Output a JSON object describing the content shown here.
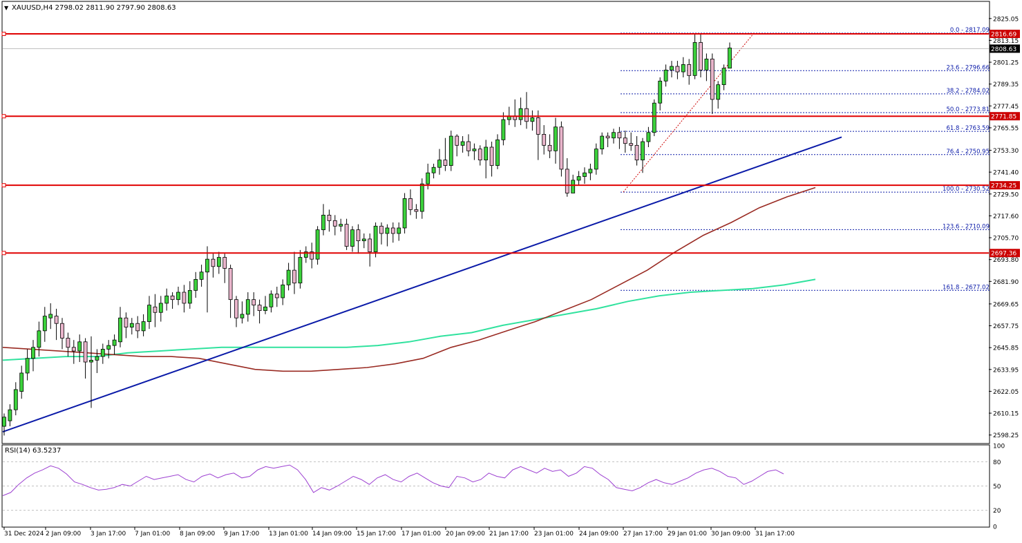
{
  "header": {
    "symbol_line": "XAUUSD,H4  2798.02 2811.90 2797.90 2808.63",
    "dropdown_glyph": "▼"
  },
  "rsi_header": "RSI(14) 63.5237",
  "colors": {
    "bull_body": "#3cd23c",
    "bear_body": "#e9b5cb",
    "wick": "#000000",
    "hline": "#e00000",
    "trendline": "#0a1aa8",
    "ma_red": "#992a22",
    "ma_green": "#30e29e",
    "fib": "#0a1aa8",
    "rsi_line": "#9c3fd1",
    "label_bg": "#cc0000",
    "price_label_bg": "#000000"
  },
  "chart_data": [
    {
      "type": "candlestick",
      "title": "XAUUSD,H4",
      "last": {
        "open": 2798.02,
        "high": 2811.9,
        "low": 2797.9,
        "close": 2808.63
      },
      "ylim": [
        2594,
        2834
      ],
      "y_ticks": [
        "2825.05",
        "2813.15",
        "2801.25",
        "2789.35",
        "2777.45",
        "2765.55",
        "2753.30",
        "2741.40",
        "2729.50",
        "2717.60",
        "2705.70",
        "2693.80",
        "2681.90",
        "2669.65",
        "2657.75",
        "2645.85",
        "2633.95",
        "2622.05",
        "2610.15",
        "2598.25"
      ],
      "x_ticks": [
        "31 Dec 2024",
        "2 Jan 09:00",
        "3 Jan 17:00",
        "7 Jan 01:00",
        "8 Jan 09:00",
        "9 Jan 17:00",
        "13 Jan 01:00",
        "14 Jan 09:00",
        "15 Jan 17:00",
        "17 Jan 01:00",
        "20 Jan 09:00",
        "21 Jan 17:00",
        "23 Jan 01:00",
        "24 Jan 09:00",
        "27 Jan 17:00",
        "29 Jan 01:00",
        "30 Jan 09:00",
        "31 Jan 17:00"
      ],
      "candles": [
        [
          2603,
          2608,
          2598,
          2610
        ],
        [
          2606,
          2612,
          2603,
          2615
        ],
        [
          2612,
          2623,
          2609,
          2627
        ],
        [
          2622,
          2632,
          2618,
          2636
        ],
        [
          2632,
          2640,
          2628,
          2645
        ],
        [
          2640,
          2646,
          2633,
          2650
        ],
        [
          2646,
          2655,
          2641,
          2660
        ],
        [
          2655,
          2663,
          2649,
          2668
        ],
        [
          2662,
          2664,
          2656,
          2670
        ],
        [
          2663,
          2659,
          2650,
          2667
        ],
        [
          2659,
          2651,
          2645,
          2662
        ],
        [
          2651,
          2646,
          2641,
          2654
        ],
        [
          2646,
          2644,
          2637,
          2650
        ],
        [
          2644,
          2649,
          2638,
          2653
        ],
        [
          2649,
          2638,
          2629,
          2651
        ],
        [
          2638,
          2639,
          2613,
          2652
        ],
        [
          2639,
          2641,
          2632,
          2645
        ],
        [
          2641,
          2645,
          2637,
          2648
        ],
        [
          2645,
          2647,
          2640,
          2650
        ],
        [
          2647,
          2650,
          2642,
          2653
        ],
        [
          2649,
          2662,
          2646,
          2668
        ],
        [
          2662,
          2657,
          2651,
          2665
        ],
        [
          2657,
          2659,
          2653,
          2662
        ],
        [
          2659,
          2655,
          2651,
          2663
        ],
        [
          2655,
          2660,
          2652,
          2664
        ],
        [
          2660,
          2669,
          2656,
          2674
        ],
        [
          2668,
          2665,
          2657,
          2675
        ],
        [
          2665,
          2670,
          2660,
          2674
        ],
        [
          2670,
          2674,
          2666,
          2678
        ],
        [
          2674,
          2672,
          2667,
          2676
        ],
        [
          2672,
          2676,
          2669,
          2679
        ],
        [
          2676,
          2670,
          2665,
          2680
        ],
        [
          2670,
          2677,
          2667,
          2682
        ],
        [
          2677,
          2683,
          2673,
          2687
        ],
        [
          2683,
          2687,
          2679,
          2691
        ],
        [
          2687,
          2694,
          2665,
          2701
        ],
        [
          2694,
          2690,
          2684,
          2697
        ],
        [
          2690,
          2695,
          2686,
          2698
        ],
        [
          2695,
          2689,
          2681,
          2697
        ],
        [
          2689,
          2672,
          2662,
          2691
        ],
        [
          2672,
          2662,
          2657,
          2674
        ],
        [
          2662,
          2664,
          2659,
          2671
        ],
        [
          2664,
          2672,
          2660,
          2676
        ],
        [
          2672,
          2669,
          2663,
          2676
        ],
        [
          2669,
          2666,
          2659,
          2672
        ],
        [
          2666,
          2668,
          2664,
          2674
        ],
        [
          2668,
          2675,
          2665,
          2677
        ],
        [
          2675,
          2673,
          2668,
          2679
        ],
        [
          2673,
          2680,
          2669,
          2683
        ],
        [
          2680,
          2688,
          2677,
          2692
        ],
        [
          2688,
          2681,
          2675,
          2698
        ],
        [
          2681,
          2695,
          2678,
          2699
        ],
        [
          2695,
          2698,
          2692,
          2701
        ],
        [
          2698,
          2694,
          2689,
          2703
        ],
        [
          2694,
          2710,
          2691,
          2712
        ],
        [
          2710,
          2718,
          2707,
          2724
        ],
        [
          2718,
          2715,
          2709,
          2721
        ],
        [
          2715,
          2712,
          2707,
          2718
        ],
        [
          2712,
          2713,
          2709,
          2716
        ],
        [
          2713,
          2701,
          2699,
          2716
        ],
        [
          2701,
          2710,
          2698,
          2712
        ],
        [
          2710,
          2704,
          2697,
          2713
        ],
        [
          2704,
          2705,
          2700,
          2708
        ],
        [
          2705,
          2698,
          2690,
          2708
        ],
        [
          2698,
          2712,
          2695,
          2714
        ],
        [
          2712,
          2708,
          2702,
          2714
        ],
        [
          2708,
          2711,
          2701,
          2713
        ],
        [
          2711,
          2708,
          2703,
          2714
        ],
        [
          2708,
          2711,
          2704,
          2714
        ],
        [
          2711,
          2727,
          2708,
          2730
        ],
        [
          2727,
          2721,
          2718,
          2732
        ],
        [
          2721,
          2720,
          2716,
          2724
        ],
        [
          2720,
          2735,
          2716,
          2738
        ],
        [
          2735,
          2741,
          2732,
          2746
        ],
        [
          2741,
          2744,
          2738,
          2746
        ],
        [
          2744,
          2748,
          2740,
          2754
        ],
        [
          2748,
          2745,
          2742,
          2760
        ],
        [
          2745,
          2761,
          2742,
          2764
        ],
        [
          2761,
          2756,
          2750,
          2762
        ],
        [
          2756,
          2758,
          2752,
          2761
        ],
        [
          2758,
          2753,
          2750,
          2762
        ],
        [
          2753,
          2754,
          2748,
          2757
        ],
        [
          2754,
          2748,
          2745,
          2756
        ],
        [
          2748,
          2755,
          2738,
          2759
        ],
        [
          2755,
          2745,
          2739,
          2758
        ],
        [
          2745,
          2759,
          2743,
          2762
        ],
        [
          2759,
          2770,
          2756,
          2774
        ],
        [
          2770,
          2772,
          2767,
          2777
        ],
        [
          2772,
          2770,
          2766,
          2781
        ],
        [
          2770,
          2776,
          2767,
          2782
        ],
        [
          2776,
          2769,
          2765,
          2785
        ],
        [
          2769,
          2771,
          2764,
          2775
        ],
        [
          2771,
          2762,
          2748,
          2775
        ],
        [
          2762,
          2756,
          2751,
          2767
        ],
        [
          2756,
          2753,
          2749,
          2762
        ],
        [
          2753,
          2766,
          2746,
          2771
        ],
        [
          2766,
          2743,
          2739,
          2769
        ],
        [
          2743,
          2730,
          2728,
          2749
        ],
        [
          2730,
          2737,
          2732,
          2740
        ],
        [
          2737,
          2739,
          2734,
          2742
        ],
        [
          2739,
          2741,
          2735,
          2744
        ],
        [
          2741,
          2743,
          2737,
          2746
        ],
        [
          2743,
          2754,
          2740,
          2757
        ],
        [
          2754,
          2761,
          2751,
          2763
        ],
        [
          2761,
          2760,
          2755,
          2763
        ],
        [
          2760,
          2763,
          2757,
          2765
        ],
        [
          2763,
          2760,
          2754,
          2766
        ],
        [
          2760,
          2757,
          2752,
          2764
        ],
        [
          2757,
          2756,
          2753,
          2763
        ],
        [
          2756,
          2748,
          2745,
          2761
        ],
        [
          2748,
          2758,
          2741,
          2760
        ],
        [
          2758,
          2763,
          2755,
          2766
        ],
        [
          2763,
          2779,
          2761,
          2781
        ],
        [
          2779,
          2791,
          2775,
          2793
        ],
        [
          2791,
          2797,
          2788,
          2800
        ],
        [
          2797,
          2799,
          2793,
          2802
        ],
        [
          2799,
          2796,
          2792,
          2802
        ],
        [
          2796,
          2800,
          2793,
          2804
        ],
        [
          2800,
          2794,
          2789,
          2803
        ],
        [
          2794,
          2812,
          2792,
          2817
        ],
        [
          2812,
          2797,
          2793,
          2817
        ],
        [
          2797,
          2803,
          2791,
          2806
        ],
        [
          2803,
          2781,
          2773,
          2806
        ],
        [
          2781,
          2789,
          2776,
          2791
        ],
        [
          2789,
          2798,
          2786,
          2800
        ],
        [
          2798,
          2809,
          2798,
          2812
        ]
      ],
      "horizontal_levels": [
        {
          "price": 2816.69,
          "label": "2816.69"
        },
        {
          "price": 2771.85,
          "label": "2771.85"
        },
        {
          "price": 2734.25,
          "label": "2734.25"
        },
        {
          "price": 2697.36,
          "label": "2697.36"
        }
      ],
      "current_price": {
        "price": 2808.63,
        "label": "2808.63"
      },
      "fibonacci": [
        {
          "price": 2817.09,
          "label": "0.0 - 2817.09"
        },
        {
          "price": 2796.66,
          "label": "23.6 - 2796.66"
        },
        {
          "price": 2784.02,
          "label": "38.2 - 2784.02"
        },
        {
          "price": 2773.81,
          "label": "50.0 - 2773.81"
        },
        {
          "price": 2763.59,
          "label": "61.8 - 2763.59"
        },
        {
          "price": 2750.95,
          "label": "76.4 - 2750.95"
        },
        {
          "price": 2730.52,
          "label": "100.0 - 2730.52"
        },
        {
          "price": 2710.09,
          "label": "123.6 - 2710.09"
        },
        {
          "price": 2677.02,
          "label": "161.8 - 2677.02"
        }
      ],
      "trendline": {
        "from_price": 2600,
        "to_price": 2760.5
      },
      "ma_red": [
        2646,
        2645,
        2644,
        2643,
        2642,
        2641,
        2641,
        2640,
        2637,
        2634,
        2633,
        2633,
        2634,
        2635,
        2637,
        2640,
        2646,
        2650,
        2655,
        2660,
        2666,
        2672,
        2680,
        2688,
        2698,
        2707,
        2714,
        2722,
        2728,
        2733
      ],
      "ma_green": [
        2639,
        2640,
        2641,
        2641,
        2643,
        2644,
        2645,
        2646,
        2646,
        2646,
        2646,
        2646,
        2647,
        2649,
        2652,
        2654,
        2658,
        2661,
        2664,
        2667,
        2671,
        2674,
        2676,
        2677,
        2678,
        2680,
        2683
      ]
    },
    {
      "type": "line",
      "title": "RSI(14) 63.5237",
      "ylim": [
        0,
        100
      ],
      "y_ticks": [
        "100",
        "80",
        "50",
        "20",
        "0"
      ],
      "levels": [
        80,
        50,
        20
      ],
      "values": [
        38,
        42,
        52,
        60,
        66,
        70,
        75,
        72,
        65,
        55,
        52,
        48,
        45,
        46,
        48,
        52,
        50,
        56,
        62,
        58,
        60,
        62,
        64,
        58,
        55,
        62,
        65,
        60,
        64,
        66,
        60,
        62,
        70,
        74,
        72,
        74,
        76,
        70,
        58,
        42,
        48,
        45,
        50,
        56,
        62,
        58,
        52,
        60,
        64,
        58,
        55,
        62,
        66,
        60,
        54,
        50,
        48,
        62,
        60,
        55,
        58,
        66,
        62,
        60,
        70,
        74,
        70,
        66,
        72,
        68,
        70,
        62,
        66,
        74,
        72,
        64,
        58,
        48,
        46,
        44,
        48,
        54,
        58,
        54,
        52,
        56,
        60,
        66,
        70,
        72,
        68,
        62,
        60,
        52,
        56,
        62,
        68,
        70,
        65
      ]
    }
  ]
}
